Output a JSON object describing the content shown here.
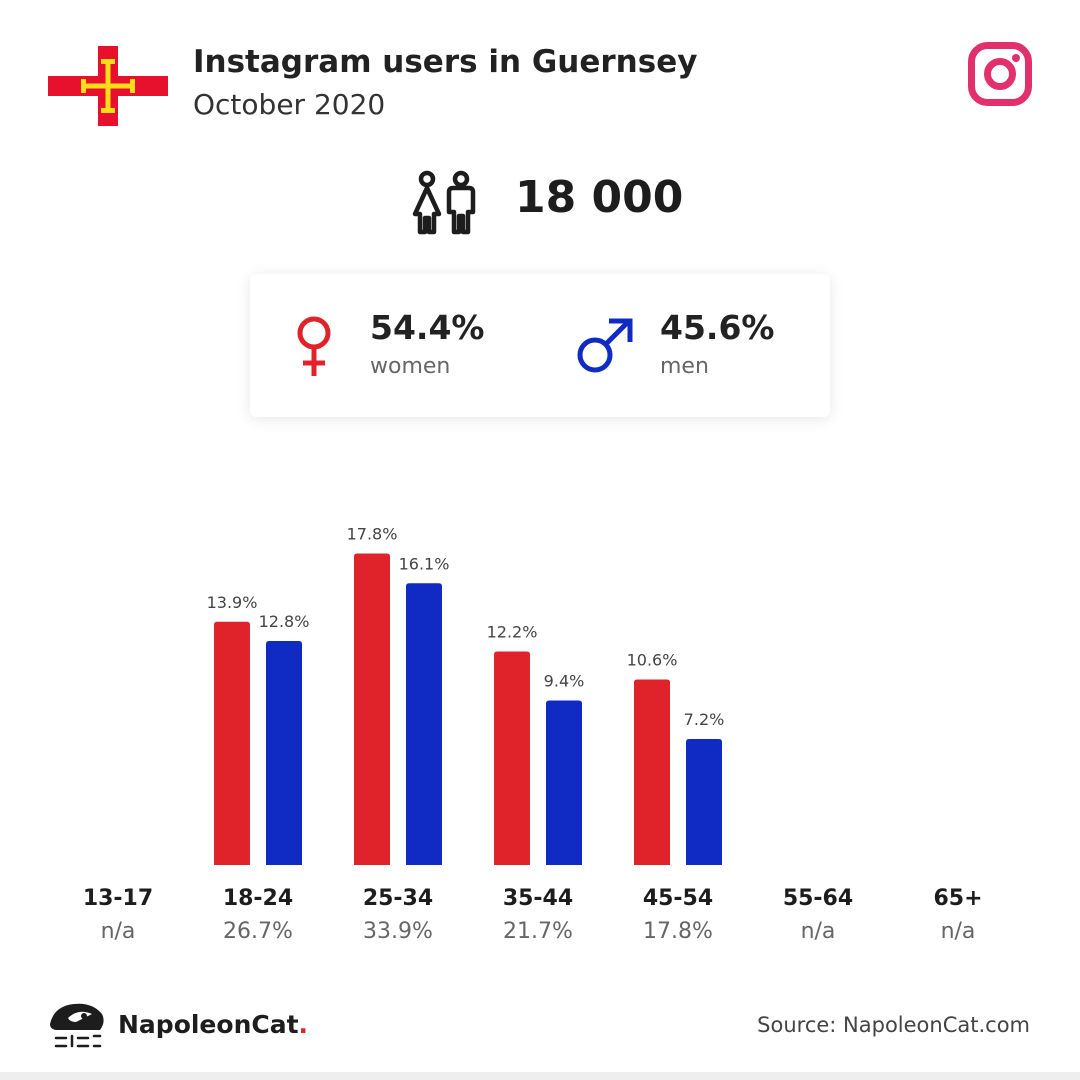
{
  "header": {
    "title": "Instagram users in Guernsey",
    "subtitle": "October 2020",
    "flag_icon": "guernsey-flag-icon",
    "platform_icon": "instagram-icon"
  },
  "total": {
    "value": "18 000",
    "icon": "people-icon"
  },
  "gender": {
    "women_pct": "54.4%",
    "women_label": "women",
    "men_pct": "45.6%",
    "men_label": "men"
  },
  "colors": {
    "women": "#e0232a",
    "men": "#0f2bc4",
    "instagram": "#e1306c"
  },
  "chart_data": {
    "type": "bar",
    "categories": [
      "13-17",
      "18-24",
      "25-34",
      "35-44",
      "45-54",
      "55-64",
      "65+"
    ],
    "category_totals": [
      "n/a",
      "26.7%",
      "33.9%",
      "21.7%",
      "17.8%",
      "n/a",
      "n/a"
    ],
    "series": [
      {
        "values": [
          null,
          13.9,
          17.8,
          12.2,
          10.6,
          null,
          null
        ],
        "labels": [
          "",
          "13.9%",
          "17.8%",
          "12.2%",
          "10.6%",
          "",
          ""
        ],
        "color": "#e0232a"
      },
      {
        "values": [
          null,
          12.8,
          16.1,
          9.4,
          7.2,
          null,
          null
        ],
        "labels": [
          "",
          "12.8%",
          "16.1%",
          "9.4%",
          "7.2%",
          "",
          ""
        ],
        "color": "#0f2bc4"
      }
    ],
    "ylim": [
      0,
      20
    ],
    "grid": false
  },
  "footer": {
    "brand_name": "NapoleonCat",
    "brand_dot": ".",
    "brand_icon": "napoleoncat-logo-icon",
    "source": "Source: NapoleonCat.com"
  }
}
